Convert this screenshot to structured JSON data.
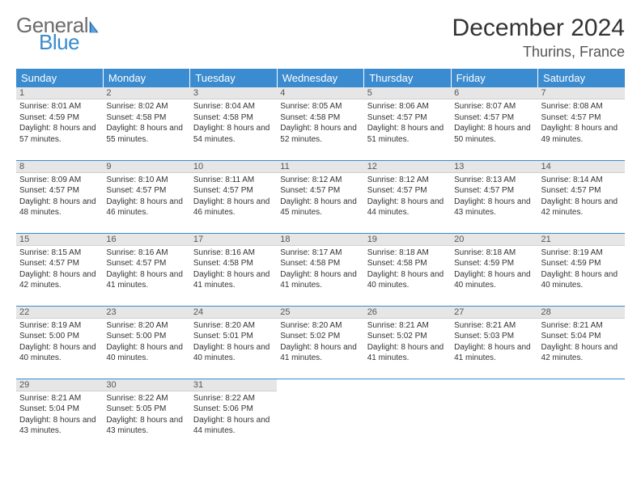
{
  "brand": {
    "general": "General",
    "blue": "Blue"
  },
  "title": "December 2024",
  "location": "Thurins, France",
  "colors": {
    "header_bg": "#3a8bcf",
    "header_text": "#ffffff",
    "daynum_bg": "#e6e6e6",
    "row_divider": "#3a8bcf",
    "text": "#333333",
    "logo_gray": "#6c6c6c",
    "logo_blue": "#3a8bcf"
  },
  "weekdays": [
    "Sunday",
    "Monday",
    "Tuesday",
    "Wednesday",
    "Thursday",
    "Friday",
    "Saturday"
  ],
  "weeks": [
    [
      {
        "n": "1",
        "sunrise": "8:01 AM",
        "sunset": "4:59 PM",
        "daylight": "8 hours and 57 minutes."
      },
      {
        "n": "2",
        "sunrise": "8:02 AM",
        "sunset": "4:58 PM",
        "daylight": "8 hours and 55 minutes."
      },
      {
        "n": "3",
        "sunrise": "8:04 AM",
        "sunset": "4:58 PM",
        "daylight": "8 hours and 54 minutes."
      },
      {
        "n": "4",
        "sunrise": "8:05 AM",
        "sunset": "4:58 PM",
        "daylight": "8 hours and 52 minutes."
      },
      {
        "n": "5",
        "sunrise": "8:06 AM",
        "sunset": "4:57 PM",
        "daylight": "8 hours and 51 minutes."
      },
      {
        "n": "6",
        "sunrise": "8:07 AM",
        "sunset": "4:57 PM",
        "daylight": "8 hours and 50 minutes."
      },
      {
        "n": "7",
        "sunrise": "8:08 AM",
        "sunset": "4:57 PM",
        "daylight": "8 hours and 49 minutes."
      }
    ],
    [
      {
        "n": "8",
        "sunrise": "8:09 AM",
        "sunset": "4:57 PM",
        "daylight": "8 hours and 48 minutes."
      },
      {
        "n": "9",
        "sunrise": "8:10 AM",
        "sunset": "4:57 PM",
        "daylight": "8 hours and 46 minutes."
      },
      {
        "n": "10",
        "sunrise": "8:11 AM",
        "sunset": "4:57 PM",
        "daylight": "8 hours and 46 minutes."
      },
      {
        "n": "11",
        "sunrise": "8:12 AM",
        "sunset": "4:57 PM",
        "daylight": "8 hours and 45 minutes."
      },
      {
        "n": "12",
        "sunrise": "8:12 AM",
        "sunset": "4:57 PM",
        "daylight": "8 hours and 44 minutes."
      },
      {
        "n": "13",
        "sunrise": "8:13 AM",
        "sunset": "4:57 PM",
        "daylight": "8 hours and 43 minutes."
      },
      {
        "n": "14",
        "sunrise": "8:14 AM",
        "sunset": "4:57 PM",
        "daylight": "8 hours and 42 minutes."
      }
    ],
    [
      {
        "n": "15",
        "sunrise": "8:15 AM",
        "sunset": "4:57 PM",
        "daylight": "8 hours and 42 minutes."
      },
      {
        "n": "16",
        "sunrise": "8:16 AM",
        "sunset": "4:57 PM",
        "daylight": "8 hours and 41 minutes."
      },
      {
        "n": "17",
        "sunrise": "8:16 AM",
        "sunset": "4:58 PM",
        "daylight": "8 hours and 41 minutes."
      },
      {
        "n": "18",
        "sunrise": "8:17 AM",
        "sunset": "4:58 PM",
        "daylight": "8 hours and 41 minutes."
      },
      {
        "n": "19",
        "sunrise": "8:18 AM",
        "sunset": "4:58 PM",
        "daylight": "8 hours and 40 minutes."
      },
      {
        "n": "20",
        "sunrise": "8:18 AM",
        "sunset": "4:59 PM",
        "daylight": "8 hours and 40 minutes."
      },
      {
        "n": "21",
        "sunrise": "8:19 AM",
        "sunset": "4:59 PM",
        "daylight": "8 hours and 40 minutes."
      }
    ],
    [
      {
        "n": "22",
        "sunrise": "8:19 AM",
        "sunset": "5:00 PM",
        "daylight": "8 hours and 40 minutes."
      },
      {
        "n": "23",
        "sunrise": "8:20 AM",
        "sunset": "5:00 PM",
        "daylight": "8 hours and 40 minutes."
      },
      {
        "n": "24",
        "sunrise": "8:20 AM",
        "sunset": "5:01 PM",
        "daylight": "8 hours and 40 minutes."
      },
      {
        "n": "25",
        "sunrise": "8:20 AM",
        "sunset": "5:02 PM",
        "daylight": "8 hours and 41 minutes."
      },
      {
        "n": "26",
        "sunrise": "8:21 AM",
        "sunset": "5:02 PM",
        "daylight": "8 hours and 41 minutes."
      },
      {
        "n": "27",
        "sunrise": "8:21 AM",
        "sunset": "5:03 PM",
        "daylight": "8 hours and 41 minutes."
      },
      {
        "n": "28",
        "sunrise": "8:21 AM",
        "sunset": "5:04 PM",
        "daylight": "8 hours and 42 minutes."
      }
    ],
    [
      {
        "n": "29",
        "sunrise": "8:21 AM",
        "sunset": "5:04 PM",
        "daylight": "8 hours and 43 minutes."
      },
      {
        "n": "30",
        "sunrise": "8:22 AM",
        "sunset": "5:05 PM",
        "daylight": "8 hours and 43 minutes."
      },
      {
        "n": "31",
        "sunrise": "8:22 AM",
        "sunset": "5:06 PM",
        "daylight": "8 hours and 44 minutes."
      },
      null,
      null,
      null,
      null
    ]
  ],
  "labels": {
    "sunrise": "Sunrise:",
    "sunset": "Sunset:",
    "daylight": "Daylight:"
  }
}
